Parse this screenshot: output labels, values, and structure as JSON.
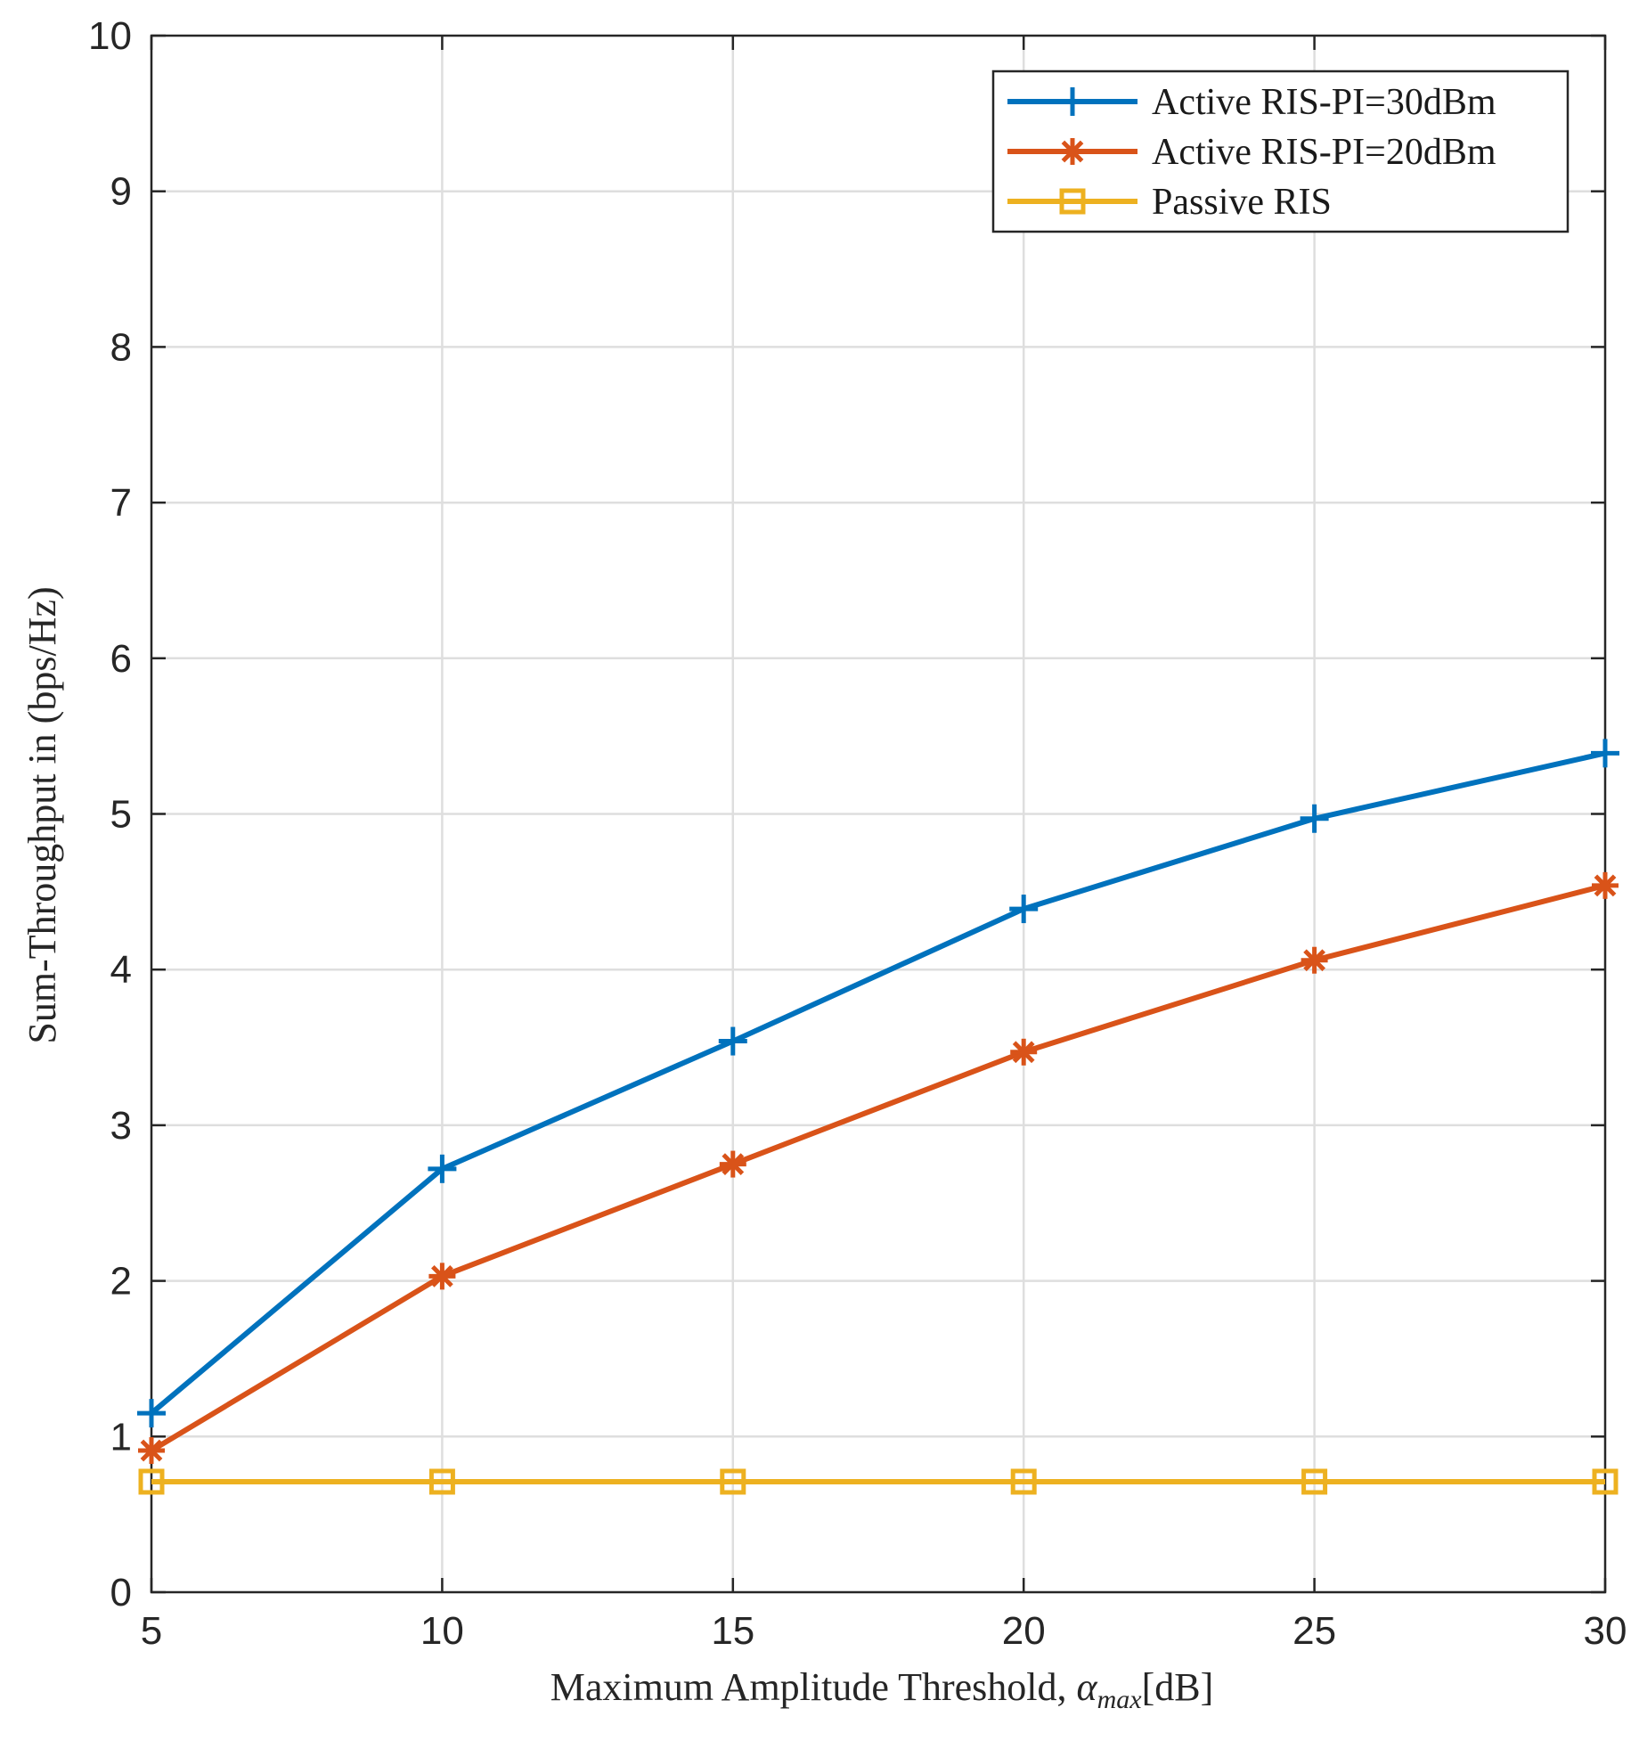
{
  "chart_data": {
    "type": "line",
    "x": [
      5,
      10,
      15,
      20,
      25,
      30
    ],
    "series": [
      {
        "name": "Active RIS-PI=30dBm",
        "values": [
          1.15,
          2.72,
          3.54,
          4.39,
          4.97,
          5.39
        ],
        "color": "#0072bd",
        "marker": "plus"
      },
      {
        "name": "Active RIS-PI=20dBm",
        "values": [
          0.91,
          2.03,
          2.75,
          3.47,
          4.06,
          4.54
        ],
        "color": "#d95319",
        "marker": "asterisk"
      },
      {
        "name": "Passive RIS",
        "values": [
          0.71,
          0.71,
          0.71,
          0.71,
          0.71,
          0.71
        ],
        "color": "#edb120",
        "marker": "square"
      }
    ],
    "xlabel": "Maximum Amplitude Threshold, ",
    "xlabel_symbol": "α",
    "xlabel_subscript": "max",
    "xlabel_unit": "[dB]",
    "ylabel": "Sum-Throughput in (bps/Hz)",
    "xlim": [
      5,
      30
    ],
    "ylim": [
      0,
      10
    ],
    "xticks": [
      5,
      10,
      15,
      20,
      25,
      30
    ],
    "yticks": [
      0,
      1,
      2,
      3,
      4,
      5,
      6,
      7,
      8,
      9,
      10
    ],
    "grid": true,
    "legend_position": "top-right"
  }
}
